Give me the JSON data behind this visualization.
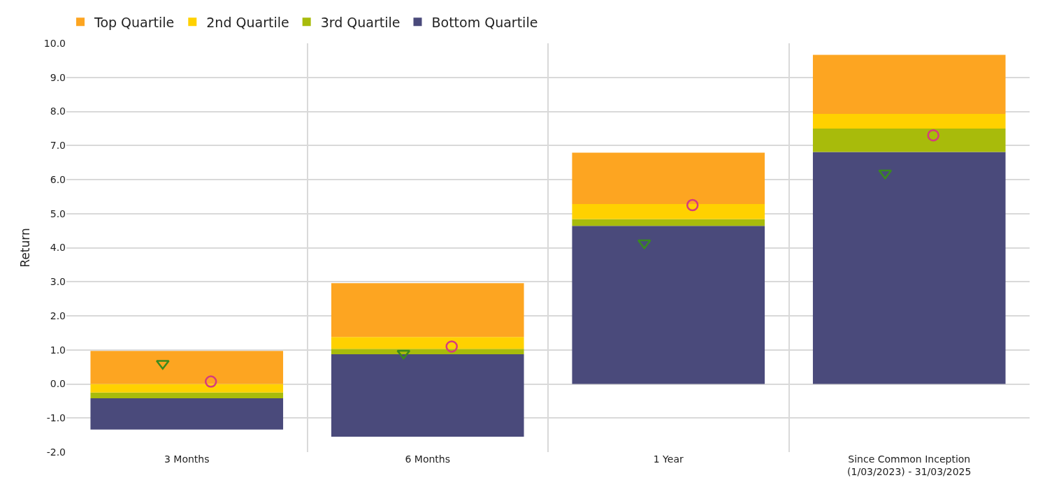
{
  "chart_data": {
    "type": "bar",
    "ylabel": "Return",
    "categories": [
      "3 Months",
      "6 Months",
      "1 Year",
      "Since Common Inception (1/03/2023) - 31/03/2025"
    ],
    "series": [
      {
        "name": "Bottom Quartile",
        "color": "#4a4a7b",
        "base": [
          -1.34,
          -1.55,
          0,
          0
        ],
        "values": [
          0.92,
          2.42,
          4.64,
          6.81
        ]
      },
      {
        "name": "3rd Quartile",
        "color": "#a8bb0b",
        "base": [
          -0.42,
          0.87,
          4.64,
          6.81
        ],
        "values": [
          0.17,
          0.16,
          0.2,
          0.69
        ]
      },
      {
        "name": "2nd Quartile",
        "color": "#ffd100",
        "base": [
          -0.25,
          1.03,
          4.84,
          7.5
        ],
        "values": [
          0.25,
          0.35,
          0.44,
          0.43
        ]
      },
      {
        "name": "Top Quartile",
        "color": "#fda521",
        "base": [
          0.0,
          1.38,
          5.28,
          7.93
        ],
        "values": [
          0.97,
          1.58,
          1.51,
          1.73
        ]
      },
      {
        "type": "scatter",
        "color": "#3a8a1e",
        "marker": "triangle",
        "values": [
          0.6,
          0.9,
          4.14,
          6.19
        ]
      },
      {
        "type": "scatter",
        "color": "#d63c7d",
        "marker": "circle",
        "values": [
          0.07,
          1.1,
          5.25,
          7.3
        ]
      }
    ],
    "ylim": [
      -2,
      10
    ],
    "yticks": [
      {
        "value": -2,
        "label": "-2.0"
      },
      {
        "value": -1,
        "label": "-1.0"
      },
      {
        "value": 0,
        "label": "0.0"
      },
      {
        "value": 1,
        "label": "1.0"
      },
      {
        "value": 2,
        "label": "2.0"
      },
      {
        "value": 3,
        "label": "3.0"
      },
      {
        "value": 4,
        "label": "4.0"
      },
      {
        "value": 5,
        "label": "5.0"
      },
      {
        "value": 6,
        "label": "6.0"
      },
      {
        "value": 7,
        "label": "7.0"
      },
      {
        "value": 8,
        "label": "8.0"
      },
      {
        "value": 9,
        "label": "9.0"
      },
      {
        "value": 10,
        "label": "10.0"
      }
    ],
    "grid": true,
    "legend": "top left"
  }
}
